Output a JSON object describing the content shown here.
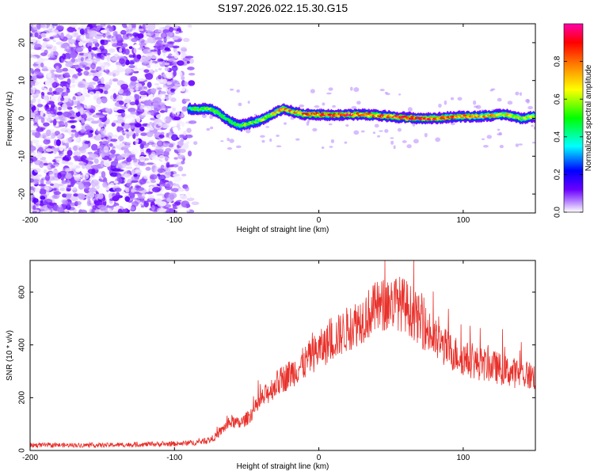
{
  "chart_data": [
    {
      "type": "heatmap",
      "title": "S197.2026.022.15.30.G15",
      "xlabel": "Height of straight line (km)",
      "ylabel": "Frequency (Hz)",
      "xlim": [
        -200,
        150
      ],
      "ylim": [
        -25,
        25
      ],
      "xticks": [
        -200,
        -100,
        0,
        100
      ],
      "yticks": [
        -20,
        -10,
        0,
        10,
        20
      ],
      "colorbar": {
        "label": "Normalized spectral amplitude",
        "range": [
          0.0,
          1.0
        ],
        "ticks": [
          0.0,
          0.2,
          0.4,
          0.6,
          0.8
        ],
        "colormap": [
          "#ffffff",
          "#7a00ff",
          "#0000ff",
          "#00ffff",
          "#00ff00",
          "#ffff00",
          "#ff8000",
          "#ff0000",
          "#ff00aa"
        ]
      },
      "noise_region": {
        "x_from": -200,
        "x_to": -85,
        "freq_from": -25,
        "freq_to": 25,
        "amplitude": 0.1
      },
      "ridge": {
        "x": [
          -90,
          -75,
          -70,
          -65,
          -60,
          -55,
          -50,
          -45,
          -40,
          -35,
          -30,
          -25,
          -20,
          -15,
          -10,
          0,
          10,
          20,
          30,
          40,
          50,
          60,
          70,
          80,
          90,
          100,
          110,
          120,
          130,
          140,
          150
        ],
        "freq": [
          2.5,
          2.5,
          1.5,
          0.0,
          -1.0,
          -2.0,
          -1.5,
          -1.0,
          -0.5,
          0.5,
          1.5,
          2.5,
          2.0,
          1.5,
          1.0,
          1.0,
          0.8,
          1.0,
          1.0,
          0.8,
          0.5,
          0.2,
          0.0,
          0.0,
          0.3,
          0.5,
          0.5,
          0.8,
          1.0,
          0.0,
          0.5
        ],
        "amplitude": [
          0.45,
          0.55,
          0.5,
          0.45,
          0.45,
          0.5,
          0.5,
          0.5,
          0.55,
          0.6,
          0.65,
          0.7,
          0.75,
          0.75,
          0.8,
          0.8,
          0.85,
          0.85,
          0.8,
          0.8,
          0.8,
          0.85,
          0.85,
          0.8,
          0.75,
          0.75,
          0.7,
          0.7,
          0.65,
          0.6,
          0.6
        ]
      }
    },
    {
      "type": "line",
      "xlabel": "Height of straight line (km)",
      "ylabel": "SNR (10 * v/v)",
      "xlim": [
        -200,
        150
      ],
      "ylim": [
        0,
        720
      ],
      "xticks": [
        -200,
        -100,
        0,
        100
      ],
      "yticks": [
        0,
        200,
        400,
        600
      ],
      "line_color": "#e8302a",
      "series": [
        {
          "name": "SNR",
          "x": [
            -200,
            -150,
            -100,
            -85,
            -75,
            -70,
            -65,
            -60,
            -55,
            -50,
            -45,
            -40,
            -35,
            -30,
            -25,
            -20,
            -15,
            -10,
            -5,
            0,
            10,
            20,
            30,
            40,
            50,
            55,
            60,
            70,
            80,
            90,
            100,
            110,
            120,
            130,
            140,
            150
          ],
          "values": [
            20,
            20,
            25,
            30,
            40,
            60,
            90,
            110,
            100,
            120,
            150,
            190,
            220,
            250,
            270,
            290,
            310,
            330,
            360,
            380,
            420,
            460,
            500,
            540,
            560,
            560,
            550,
            490,
            420,
            380,
            350,
            330,
            320,
            300,
            290,
            280
          ]
        }
      ]
    }
  ]
}
